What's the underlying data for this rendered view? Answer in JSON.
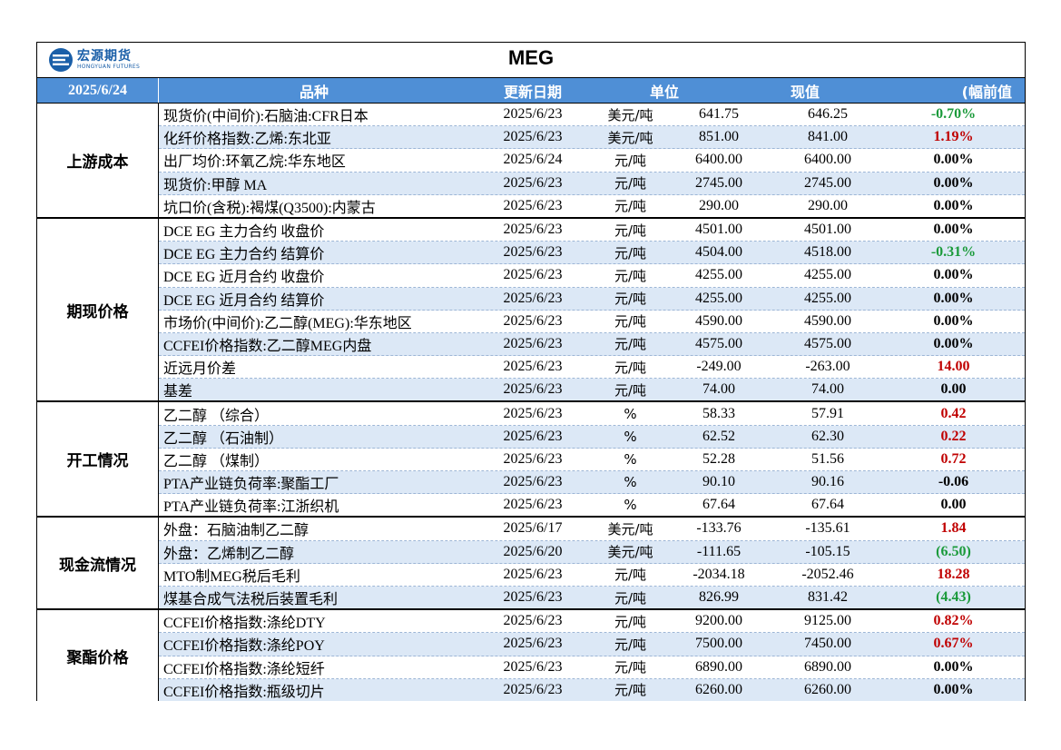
{
  "title": "MEG",
  "logo": {
    "cn": "宏源期货",
    "en": "HONGYUAN FUTURES"
  },
  "header": {
    "date": "2025/6/24",
    "name": "品种",
    "updated": "更新日期",
    "unit": "单位",
    "value": "现值",
    "change": "(幅前值"
  },
  "groups": [
    {
      "category": "上游成本",
      "rows": [
        {
          "name": "现货价(中间价):石脑油:CFR日本",
          "date": "2025/6/23",
          "unit": "美元/吨",
          "prev": "641.75",
          "cur": "646.25",
          "change": "-0.70%",
          "sign": "neg"
        },
        {
          "name": "化纤价格指数:乙烯:东北亚",
          "date": "2025/6/23",
          "unit": "美元/吨",
          "prev": "851.00",
          "cur": "841.00",
          "change": "1.19%",
          "sign": "pos"
        },
        {
          "name": "出厂均价:环氧乙烷:华东地区",
          "date": "2025/6/24",
          "unit": "元/吨",
          "prev": "6400.00",
          "cur": "6400.00",
          "change": "0.00%",
          "sign": "zero"
        },
        {
          "name": "现货价:甲醇 MA",
          "date": "2025/6/23",
          "unit": "元/吨",
          "prev": "2745.00",
          "cur": "2745.00",
          "change": "0.00%",
          "sign": "zero"
        },
        {
          "name": "坑口价(含税):褐煤(Q3500):内蒙古",
          "date": "2025/6/23",
          "unit": "元/吨",
          "prev": "290.00",
          "cur": "290.00",
          "change": "0.00%",
          "sign": "zero"
        }
      ]
    },
    {
      "category": "期现价格",
      "rows": [
        {
          "name": "DCE EG 主力合约 收盘价",
          "date": "2025/6/23",
          "unit": "元/吨",
          "prev": "4501.00",
          "cur": "4501.00",
          "change": "0.00%",
          "sign": "zero"
        },
        {
          "name": "DCE EG 主力合约 结算价",
          "date": "2025/6/23",
          "unit": "元/吨",
          "prev": "4504.00",
          "cur": "4518.00",
          "change": "-0.31%",
          "sign": "neg"
        },
        {
          "name": "DCE EG 近月合约 收盘价",
          "date": "2025/6/23",
          "unit": "元/吨",
          "prev": "4255.00",
          "cur": "4255.00",
          "change": "0.00%",
          "sign": "zero"
        },
        {
          "name": "DCE EG 近月合约 结算价",
          "date": "2025/6/23",
          "unit": "元/吨",
          "prev": "4255.00",
          "cur": "4255.00",
          "change": "0.00%",
          "sign": "zero"
        },
        {
          "name": "市场价(中间价):乙二醇(MEG):华东地区",
          "date": "2025/6/23",
          "unit": "元/吨",
          "prev": "4590.00",
          "cur": "4590.00",
          "change": "0.00%",
          "sign": "zero"
        },
        {
          "name": "CCFEI价格指数:乙二醇MEG内盘",
          "date": "2025/6/23",
          "unit": "元/吨",
          "prev": "4575.00",
          "cur": "4575.00",
          "change": "0.00%",
          "sign": "zero"
        },
        {
          "name": "近远月价差",
          "date": "2025/6/23",
          "unit": "元/吨",
          "prev": "-249.00",
          "cur": "-263.00",
          "change": "14.00",
          "sign": "pos"
        },
        {
          "name": "基差",
          "date": "2025/6/23",
          "unit": "元/吨",
          "prev": "74.00",
          "cur": "74.00",
          "change": "0.00",
          "sign": "zero"
        }
      ]
    },
    {
      "category": "开工情况",
      "rows": [
        {
          "name": "乙二醇 （综合）",
          "date": "2025/6/23",
          "unit": "%",
          "prev": "58.33",
          "cur": "57.91",
          "change": "0.42",
          "sign": "pos"
        },
        {
          "name": "乙二醇 （石油制）",
          "date": "2025/6/23",
          "unit": "%",
          "prev": "62.52",
          "cur": "62.30",
          "change": "0.22",
          "sign": "pos"
        },
        {
          "name": "乙二醇 （煤制）",
          "date": "2025/6/23",
          "unit": "%",
          "prev": "52.28",
          "cur": "51.56",
          "change": "0.72",
          "sign": "pos"
        },
        {
          "name": "PTA产业链负荷率:聚酯工厂",
          "date": "2025/6/23",
          "unit": "%",
          "prev": "90.10",
          "cur": "90.16",
          "change": "-0.06",
          "sign": "zero"
        },
        {
          "name": "PTA产业链负荷率:江浙织机",
          "date": "2025/6/23",
          "unit": "%",
          "prev": "67.64",
          "cur": "67.64",
          "change": "0.00",
          "sign": "zero"
        }
      ]
    },
    {
      "category": "现金流情况",
      "rows": [
        {
          "name": "外盘：石脑油制乙二醇",
          "date": "2025/6/17",
          "unit": "美元/吨",
          "prev": "-133.76",
          "cur": "-135.61",
          "change": "1.84",
          "sign": "pos"
        },
        {
          "name": "外盘：乙烯制乙二醇",
          "date": "2025/6/20",
          "unit": "美元/吨",
          "prev": "-111.65",
          "cur": "-105.15",
          "change": "(6.50)",
          "sign": "neg"
        },
        {
          "name": "MTO制MEG税后毛利",
          "date": "2025/6/23",
          "unit": "元/吨",
          "prev": "-2034.18",
          "cur": "-2052.46",
          "change": "18.28",
          "sign": "pos"
        },
        {
          "name": "煤基合成气法税后装置毛利",
          "date": "2025/6/23",
          "unit": "元/吨",
          "prev": "826.99",
          "cur": "831.42",
          "change": "(4.43)",
          "sign": "neg"
        }
      ]
    },
    {
      "category": "聚酯价格",
      "rows": [
        {
          "name": "CCFEI价格指数:涤纶DTY",
          "date": "2025/6/23",
          "unit": "元/吨",
          "prev": "9200.00",
          "cur": "9125.00",
          "change": "0.82%",
          "sign": "pos"
        },
        {
          "name": "CCFEI价格指数:涤纶POY",
          "date": "2025/6/23",
          "unit": "元/吨",
          "prev": "7500.00",
          "cur": "7450.00",
          "change": "0.67%",
          "sign": "pos"
        },
        {
          "name": "CCFEI价格指数:涤纶短纤",
          "date": "2025/6/23",
          "unit": "元/吨",
          "prev": "6890.00",
          "cur": "6890.00",
          "change": "0.00%",
          "sign": "zero"
        },
        {
          "name": "CCFEI价格指数:瓶级切片",
          "date": "2025/6/23",
          "unit": "元/吨",
          "prev": "6260.00",
          "cur": "6260.00",
          "change": "0.00%",
          "sign": "zero"
        }
      ]
    }
  ]
}
